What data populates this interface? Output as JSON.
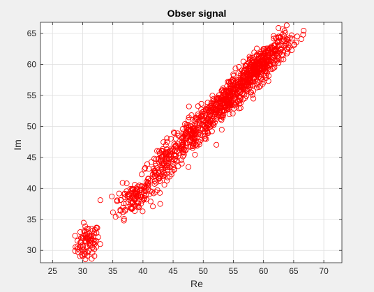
{
  "chart_data": {
    "type": "scatter",
    "title": "Obser signal",
    "xlabel": "Re",
    "ylabel": "Im",
    "xlim": [
      23,
      73
    ],
    "ylim": [
      28,
      66.8
    ],
    "xticks": [
      25,
      30,
      35,
      40,
      45,
      50,
      55,
      60,
      65,
      70
    ],
    "yticks": [
      30,
      35,
      40,
      45,
      50,
      55,
      60,
      65
    ],
    "grid": true,
    "legend": "none",
    "marker": "circle-open",
    "marker_color": "#ff0000",
    "background_color": "#ffffff",
    "figure_color": "#f0f0f0",
    "clusters": [
      {
        "center": [
          30.8,
          31.2
        ],
        "count": 90,
        "spread": [
          1.0,
          1.4
        ],
        "corr": 0.2
      },
      {
        "center": [
          38.5,
          38.6
        ],
        "count": 110,
        "spread": [
          1.6,
          1.5
        ],
        "corr": 0.4
      },
      {
        "center": [
          43.5,
          44.0
        ],
        "count": 150,
        "spread": [
          1.8,
          2.2
        ],
        "corr": 0.7
      },
      {
        "center": [
          48.5,
          49.0
        ],
        "count": 170,
        "spread": [
          2.0,
          2.3
        ],
        "corr": 0.75
      },
      {
        "center": [
          53.5,
          53.8
        ],
        "count": 300,
        "spread": [
          2.3,
          2.6
        ],
        "corr": 0.85
      },
      {
        "center": [
          59.5,
          59.8
        ],
        "count": 420,
        "spread": [
          2.6,
          2.6
        ],
        "corr": 0.85
      }
    ]
  }
}
